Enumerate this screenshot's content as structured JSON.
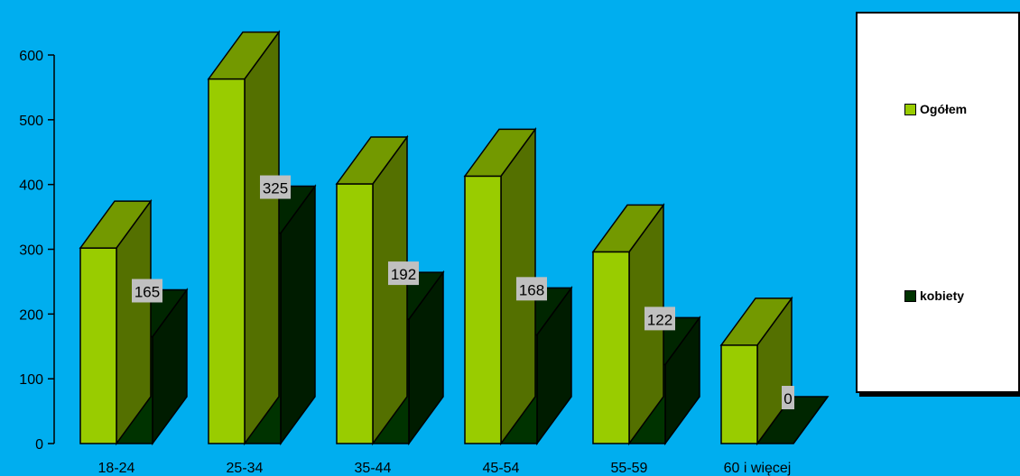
{
  "chart_data": {
    "type": "bar",
    "categories": [
      "18-24",
      "25-34",
      "35-44",
      "45-54",
      "55-59",
      "60 i więcej"
    ],
    "series": [
      {
        "name": "Ogółem",
        "color": "#99CC00",
        "values": [
          302,
          563,
          401,
          413,
          296,
          152
        ]
      },
      {
        "name": "kobiety",
        "color": "#003300",
        "values": [
          165,
          325,
          192,
          168,
          122,
          0
        ],
        "data_labels": [
          "165",
          "325",
          "192",
          "168",
          "122",
          "0"
        ]
      }
    ],
    "ylim": [
      0,
      600
    ],
    "yticks": [
      0,
      100,
      200,
      300,
      400,
      500,
      600
    ],
    "legend_position": "right",
    "three_d": true
  },
  "legend": {
    "items": [
      {
        "label": "Ogółem",
        "color": "#99CC00"
      },
      {
        "label": "kobiety",
        "color": "#003300"
      }
    ]
  }
}
